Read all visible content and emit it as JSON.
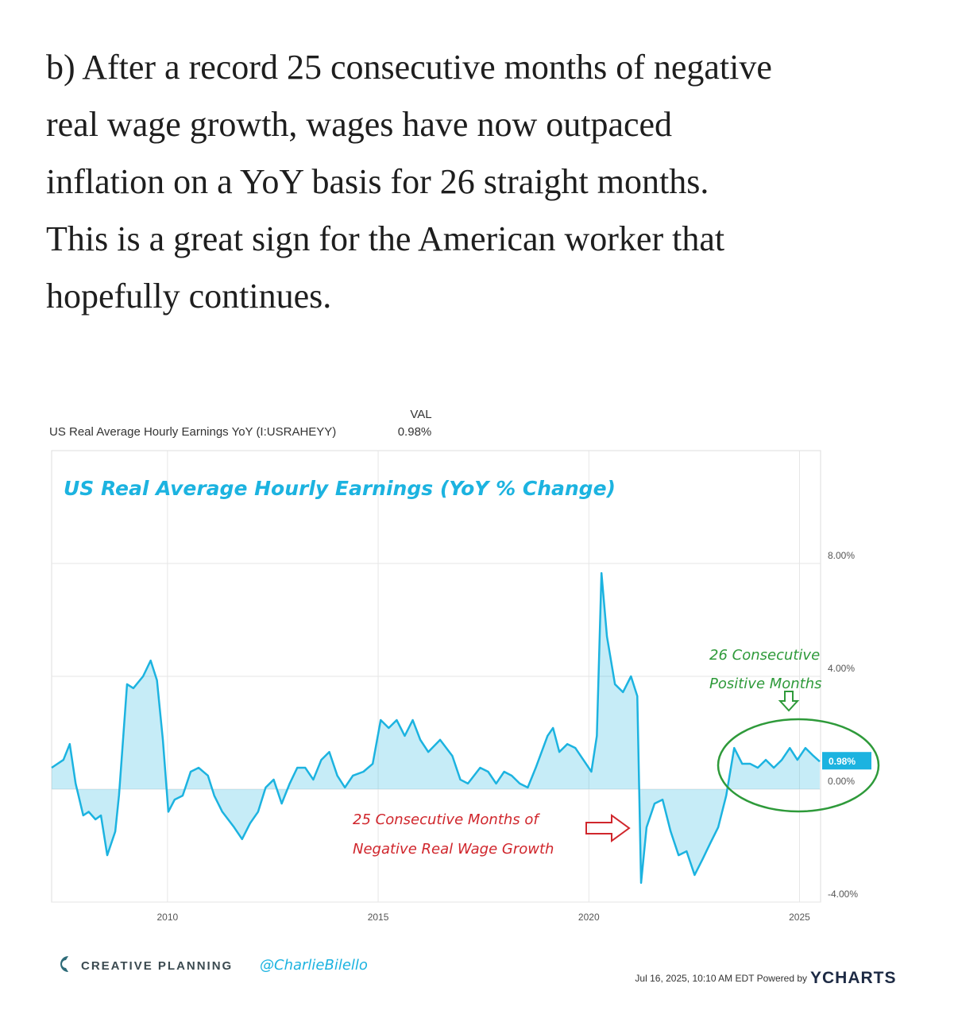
{
  "post": {
    "lines": [
      "b) After a record 25 consecutive months of negative",
      "real wage growth, wages have now outpaced",
      "inflation on a YoY basis for 26 straight months.",
      "This is a great sign for the American worker that",
      "hopefully continues."
    ]
  },
  "chart_data": {
    "type": "area",
    "title": "US Real Average Hourly Earnings (YoY % Change)",
    "val_header": "VAL",
    "val_text": "0.98%",
    "flag_label": "0.98%",
    "annotations": {
      "positive": [
        "26 Consecutive",
        "Positive Months"
      ],
      "negative": [
        "25 Consecutive Months of",
        "Negative Real Wage Growth"
      ]
    },
    "x": [
      2007.25,
      2007.53,
      2007.68,
      2007.82,
      2008.0,
      2008.13,
      2008.29,
      2008.42,
      2008.57,
      2008.76,
      2008.85,
      2009.04,
      2009.19,
      2009.42,
      2009.6,
      2009.75,
      2009.89,
      2010.02,
      2010.17,
      2010.36,
      2010.55,
      2010.74,
      2010.96,
      2011.11,
      2011.3,
      2011.58,
      2011.77,
      2011.96,
      2012.15,
      2012.33,
      2012.52,
      2012.71,
      2012.9,
      2013.08,
      2013.27,
      2013.46,
      2013.65,
      2013.84,
      2014.03,
      2014.21,
      2014.4,
      2014.65,
      2014.87,
      2015.06,
      2015.25,
      2015.44,
      2015.63,
      2015.82,
      2016.0,
      2016.19,
      2016.47,
      2016.76,
      2016.95,
      2017.13,
      2017.42,
      2017.61,
      2017.8,
      2017.99,
      2018.17,
      2018.36,
      2018.55,
      2018.74,
      2019.02,
      2019.15,
      2019.3,
      2019.49,
      2019.68,
      2019.87,
      2020.06,
      2020.19,
      2020.3,
      2020.43,
      2020.62,
      2020.81,
      2021.0,
      2021.15,
      2021.24,
      2021.37,
      2021.56,
      2021.75,
      2021.94,
      2022.13,
      2022.32,
      2022.51,
      2022.7,
      2022.88,
      2023.07,
      2023.26,
      2023.45,
      2023.64,
      2023.83,
      2024.01,
      2024.2,
      2024.39,
      2024.58,
      2024.77,
      2024.95,
      2025.14,
      2025.33,
      2025.48
    ],
    "series": [
      {
        "name": "US Real Average Hourly Earnings YoY (I:USRAHEYY)",
        "color": "#1cb3e0",
        "values": [
          0.76,
          1.04,
          1.6,
          0.2,
          -0.93,
          -0.8,
          -1.07,
          -0.93,
          -2.34,
          -1.5,
          -0.2,
          3.72,
          3.58,
          4.0,
          4.56,
          3.86,
          1.75,
          -0.8,
          -0.37,
          -0.23,
          0.62,
          0.76,
          0.48,
          -0.23,
          -0.8,
          -1.35,
          -1.77,
          -1.21,
          -0.8,
          0.06,
          0.34,
          -0.51,
          0.2,
          0.76,
          0.76,
          0.34,
          1.04,
          1.32,
          0.48,
          0.06,
          0.48,
          0.62,
          0.9,
          2.45,
          2.17,
          2.45,
          1.89,
          2.45,
          1.75,
          1.32,
          1.75,
          1.18,
          0.34,
          0.2,
          0.76,
          0.62,
          0.2,
          0.62,
          0.48,
          0.2,
          0.06,
          0.76,
          1.89,
          2.17,
          1.32,
          1.6,
          1.46,
          1.04,
          0.62,
          1.89,
          7.66,
          5.41,
          3.72,
          3.44,
          4.0,
          3.3,
          -3.32,
          -1.35,
          -0.51,
          -0.37,
          -1.49,
          -2.34,
          -2.2,
          -3.04,
          -2.48,
          -1.92,
          -1.35,
          -0.23,
          1.46,
          0.9,
          0.9,
          0.76,
          1.04,
          0.76,
          1.04,
          1.46,
          1.04,
          1.46,
          1.18,
          0.98
        ]
      }
    ],
    "xlim": [
      2007.25,
      2025.5
    ],
    "xticks": [
      2010,
      2015,
      2020,
      2025
    ],
    "ylim": [
      -4,
      12
    ],
    "yticks": [
      {
        "value": -4,
        "label": "-4.00%"
      },
      {
        "value": 0,
        "label": "0.00%"
      },
      {
        "value": 4,
        "label": "4.00%"
      },
      {
        "value": 8,
        "label": "8.00%"
      }
    ],
    "grid": true
  },
  "footer": {
    "brand": "CREATIVE PLANNING",
    "handle": "@CharlieBilello",
    "stamp": "Jul 16, 2025, 10:10 AM EDT Powered by",
    "ycharts": "YCHARTS"
  }
}
